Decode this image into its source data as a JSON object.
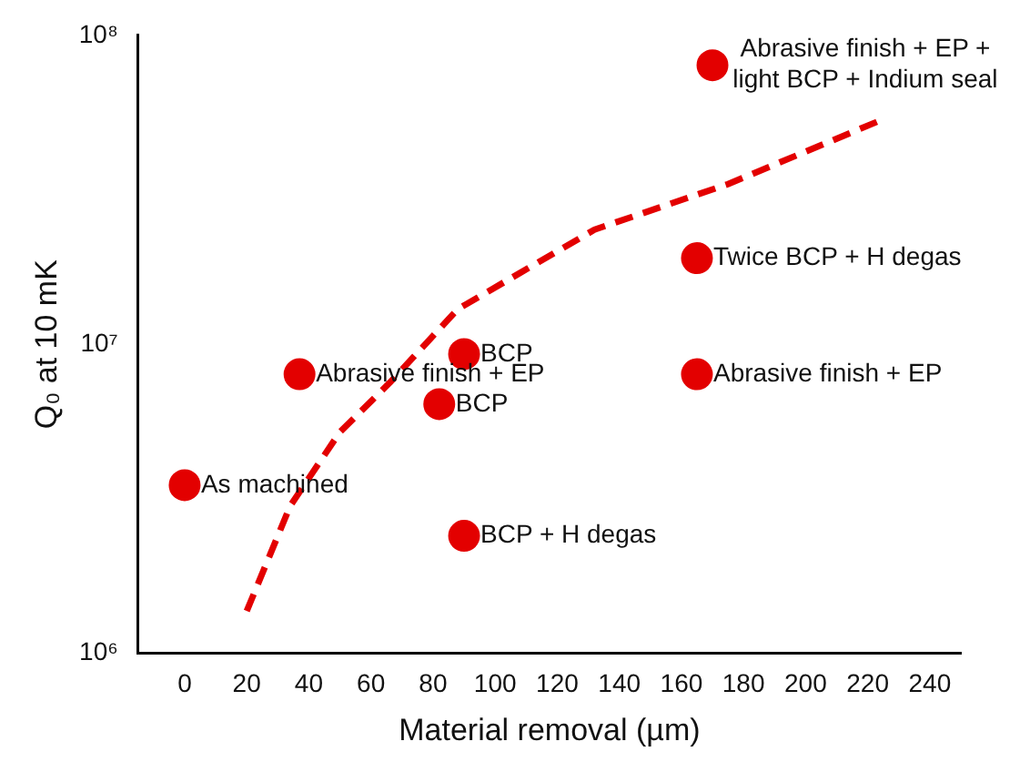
{
  "chart_data": {
    "type": "scatter",
    "xlabel": "Material removal (µm)",
    "ylabel": "Q₀ at 10 mK",
    "log": "y",
    "grid": false,
    "legend": false,
    "marker": "circle",
    "xlim": [
      -15,
      250
    ],
    "xticks": [
      0,
      20,
      40,
      60,
      80,
      100,
      120,
      140,
      160,
      180,
      200,
      220,
      240
    ],
    "ylim": [
      1000000,
      100000000
    ],
    "yticks": [
      {
        "value": 1000000,
        "label": "10⁶"
      },
      {
        "value": 10000000,
        "label": "10⁷"
      },
      {
        "value": 100000000,
        "label": "10⁸"
      }
    ],
    "series": [
      {
        "type": "scatter",
        "color": "#e30000",
        "x": [
          0,
          37,
          82,
          90,
          90,
          165,
          165,
          170
        ],
        "values": [
          3500000,
          8000000,
          6400000,
          9300000,
          2400000,
          8000000,
          19000000,
          80000000
        ]
      },
      {
        "type": "line",
        "color": "#e30000",
        "line_style": "dashed",
        "marker": "none",
        "x": [
          20,
          34,
          50,
          66,
          88,
          132,
          175,
          224
        ],
        "values": [
          1370000,
          3000000,
          5200000,
          7500000,
          13000000,
          23500000,
          33000000,
          53000000
        ]
      }
    ],
    "annotations": [
      {
        "text": "As machined",
        "x": 0,
        "y": 3500000
      },
      {
        "text": "Abrasive finish + EP",
        "x": 37,
        "y": 8000000
      },
      {
        "text": "BCP",
        "x": 82,
        "y": 6400000
      },
      {
        "text": "BCP",
        "x": 90,
        "y": 9300000
      },
      {
        "text": "BCP + H degas",
        "x": 90,
        "y": 2400000
      },
      {
        "text": "Abrasive finish + EP",
        "x": 165,
        "y": 8000000
      },
      {
        "text": "Twice BCP + H degas",
        "x": 165,
        "y": 19000000
      },
      {
        "text": "Abrasive finish + EP +\nlight BCP + Indium seal",
        "x": 170,
        "y": 80000000
      }
    ]
  }
}
